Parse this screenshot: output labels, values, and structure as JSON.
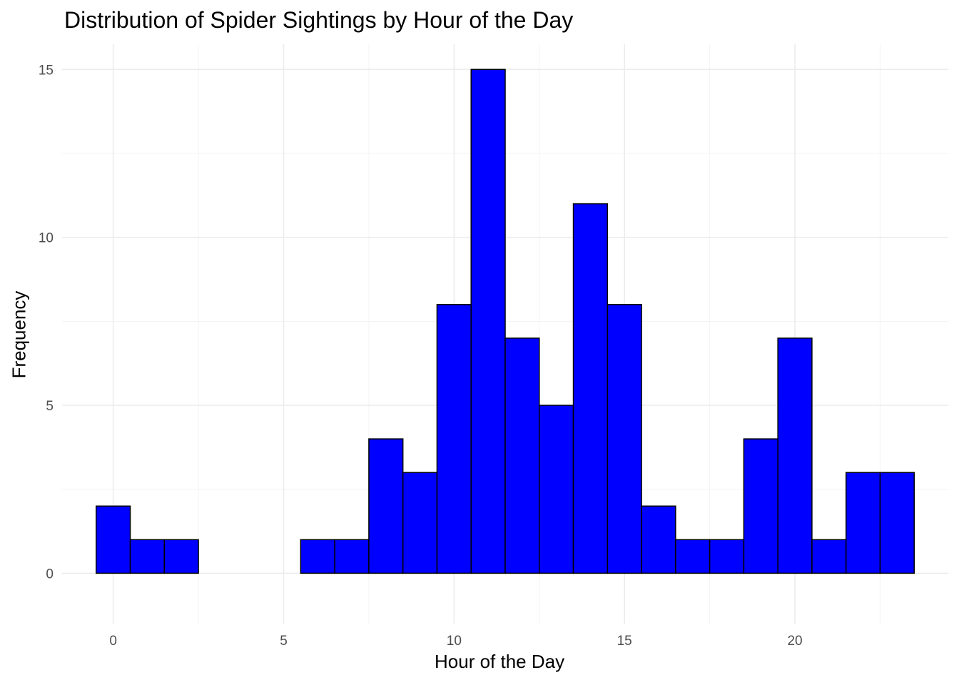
{
  "chart_data": {
    "type": "bar",
    "title": "Distribution of Spider Sightings by Hour of the Day",
    "xlabel": "Hour of the Day",
    "ylabel": "Frequency",
    "categories": [
      0,
      1,
      2,
      3,
      4,
      5,
      6,
      7,
      8,
      9,
      10,
      11,
      12,
      13,
      14,
      15,
      16,
      17,
      18,
      19,
      20,
      21,
      22,
      23
    ],
    "values": [
      2,
      1,
      1,
      0,
      0,
      0,
      1,
      1,
      4,
      3,
      8,
      15,
      7,
      5,
      11,
      8,
      2,
      1,
      1,
      4,
      7,
      1,
      3,
      3
    ],
    "bin_width": 1,
    "xlim": [
      -1.5,
      24.5
    ],
    "ylim": [
      -1.5,
      15.75
    ],
    "x_ticks": [
      0,
      5,
      10,
      15,
      20
    ],
    "y_ticks": [
      0,
      5,
      10,
      15
    ],
    "x_tick_labels": [
      "0",
      "5",
      "10",
      "15",
      "20"
    ],
    "y_tick_labels": [
      "0",
      "5",
      "10",
      "15"
    ],
    "grid": true,
    "legend": "none",
    "colors": {
      "bar_fill": "#0000ff",
      "bar_stroke": "#000000",
      "grid_major": "#ebebeb",
      "grid_minor": "#f3f3f3",
      "tick_label": "#4d4d4d"
    }
  }
}
